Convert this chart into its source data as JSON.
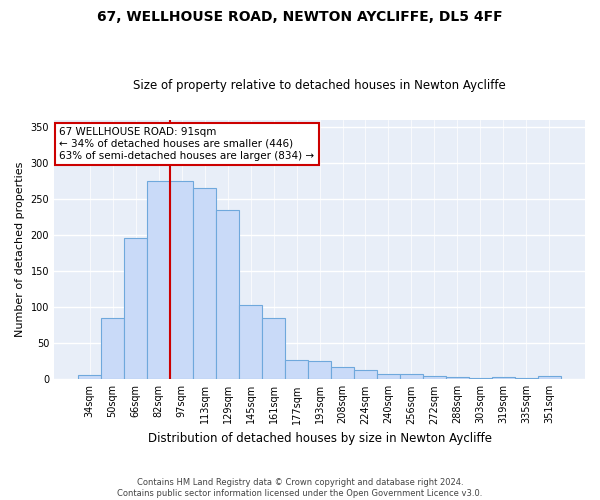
{
  "title1": "67, WELLHOUSE ROAD, NEWTON AYCLIFFE, DL5 4FF",
  "title2": "Size of property relative to detached houses in Newton Aycliffe",
  "xlabel": "Distribution of detached houses by size in Newton Aycliffe",
  "ylabel": "Number of detached properties",
  "categories": [
    "34sqm",
    "50sqm",
    "66sqm",
    "82sqm",
    "97sqm",
    "113sqm",
    "129sqm",
    "145sqm",
    "161sqm",
    "177sqm",
    "193sqm",
    "208sqm",
    "224sqm",
    "240sqm",
    "256sqm",
    "272sqm",
    "288sqm",
    "303sqm",
    "319sqm",
    "335sqm",
    "351sqm"
  ],
  "values": [
    6,
    85,
    196,
    275,
    275,
    265,
    235,
    103,
    85,
    27,
    25,
    17,
    13,
    8,
    7,
    5,
    3,
    2,
    3,
    2,
    4
  ],
  "bar_color": "#c9daf8",
  "bar_edge_color": "#6fa8dc",
  "vline_color": "#cc0000",
  "annotation_text": "67 WELLHOUSE ROAD: 91sqm\n← 34% of detached houses are smaller (446)\n63% of semi-detached houses are larger (834) →",
  "annotation_box_color": "#ffffff",
  "annotation_box_edge": "#cc0000",
  "ylim": [
    0,
    360
  ],
  "yticks": [
    0,
    50,
    100,
    150,
    200,
    250,
    300,
    350
  ],
  "footnote": "Contains HM Land Registry data © Crown copyright and database right 2024.\nContains public sector information licensed under the Open Government Licence v3.0.",
  "bg_color": "#ffffff",
  "plot_bg_color": "#e8eef8"
}
